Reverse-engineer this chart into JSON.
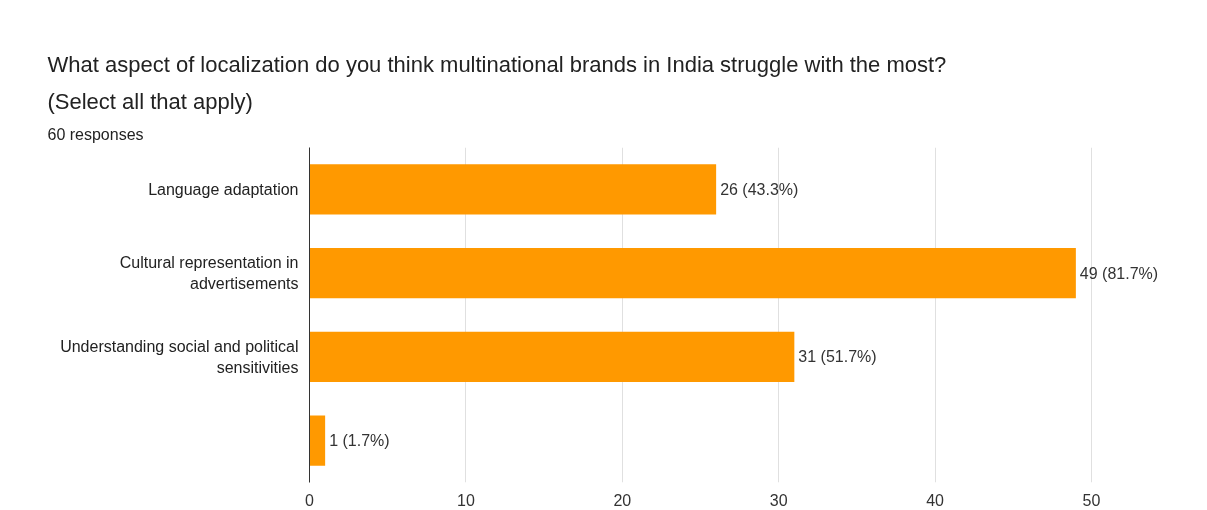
{
  "chart_data": {
    "type": "bar",
    "orientation": "horizontal",
    "title": "What aspect of localization do you think multinational brands in India struggle with the most? (Select all that apply)",
    "subtitle": "60 responses",
    "categories": [
      "Language adaptation",
      "Cultural representation in advertisements",
      "Understanding social and political sensitivities",
      null
    ],
    "values": [
      26,
      49,
      31,
      1
    ],
    "color": "#ff9900",
    "value_labels": [
      "26 (43.3%)",
      "49 (81.7%)",
      "31 (51.7%)",
      "1 (1.7%)"
    ],
    "xlim": [
      0,
      50
    ],
    "xticks": [
      0,
      10,
      20,
      30,
      40,
      50
    ],
    "grid": "x"
  }
}
